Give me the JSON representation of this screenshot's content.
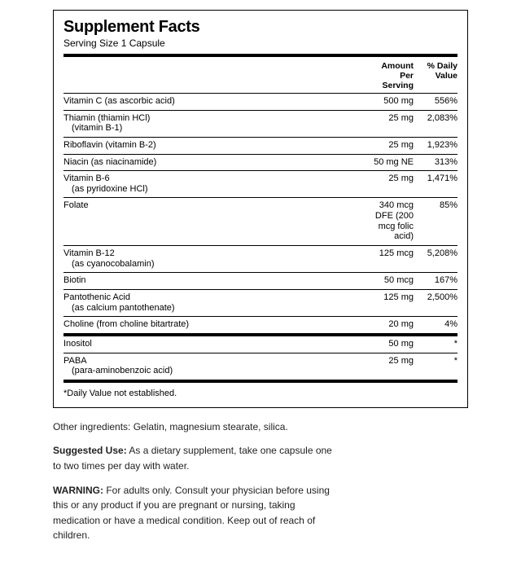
{
  "colors": {
    "border": "#000000",
    "text": "#000000",
    "background": "#ffffff"
  },
  "typography": {
    "title_fontsize": 20,
    "title_weight": 900,
    "body_fontsize": 11,
    "header_fontsize": 10.5,
    "below_fontsize": 12
  },
  "facts": {
    "title": "Supplement Facts",
    "serving": "Serving Size 1 Capsule",
    "columns": {
      "amount_l1": "Amount",
      "amount_l2": "Per",
      "amount_l3": "Serving",
      "dv_l1": "% Daily",
      "dv_l2": "Value"
    },
    "section1": [
      {
        "name": "Vitamin C (as ascorbic acid)",
        "sub": "",
        "amount": "500 mg",
        "dv": "556%"
      },
      {
        "name": "Thiamin (thiamin HCl)",
        "sub": "(vitamin B-1)",
        "amount": "25 mg",
        "dv": "2,083%"
      },
      {
        "name": "Riboflavin (vitamin B-2)",
        "sub": "",
        "amount": "25 mg",
        "dv": "1,923%"
      },
      {
        "name": "Niacin (as niacinamide)",
        "sub": "",
        "amount": "50 mg NE",
        "dv": "313%"
      },
      {
        "name": "Vitamin B-6",
        "sub": "(as pyridoxine HCl)",
        "amount": "25 mg",
        "dv": "1,471%"
      },
      {
        "name": "Folate",
        "sub": "",
        "amount": "340 mcg DFE (200 mcg folic acid)",
        "dv": "85%"
      },
      {
        "name": "Vitamin B-12",
        "sub": "(as cyanocobalamin)",
        "amount": "125 mcg",
        "dv": "5,208%"
      },
      {
        "name": "Biotin",
        "sub": "",
        "amount": "50 mcg",
        "dv": "167%"
      },
      {
        "name": "Pantothenic Acid",
        "sub": "(as calcium pantothenate)",
        "amount": "125 mg",
        "dv": "2,500%"
      },
      {
        "name": "Choline (from choline bitartrate)",
        "sub": "",
        "amount": "20 mg",
        "dv": "4%"
      }
    ],
    "section2": [
      {
        "name": "Inositol",
        "sub": "",
        "amount": "50 mg",
        "dv": "*"
      },
      {
        "name": "PABA",
        "sub": "(para-aminobenzoic acid)",
        "amount": "25 mg",
        "dv": "*"
      }
    ],
    "footnote": "*Daily Value not established."
  },
  "below": {
    "other": "Other ingredients: Gelatin, magnesium stearate, silica.",
    "suggested_label": "Suggested Use:",
    "suggested_text": " As a dietary supplement, take one capsule one to two times per day with water.",
    "warning_label": "WARNING:",
    "warning_text": " For adults only. Consult your physician before using this or any product if you are pregnant or nursing, taking medication or have a medical condition. Keep out of reach of children."
  }
}
